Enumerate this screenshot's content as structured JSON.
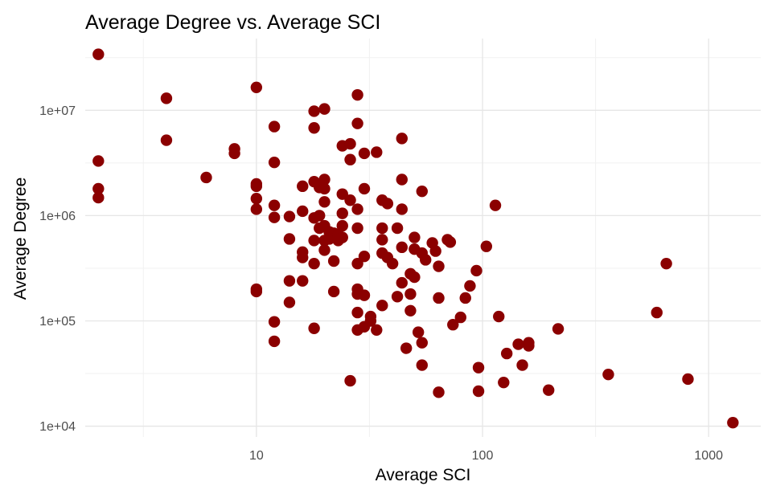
{
  "chart_data": {
    "type": "scatter",
    "title": "Average Degree vs. Average SCI",
    "xlabel": "Average SCI",
    "ylabel": "Average Degree",
    "x_scale": "log10",
    "y_scale": "log10",
    "xlim": [
      1.75,
      1700
    ],
    "ylim": [
      7900,
      48000000
    ],
    "x_ticks": [
      {
        "value": 10,
        "label": "10"
      },
      {
        "value": 100,
        "label": "100"
      },
      {
        "value": 1000,
        "label": "1000"
      }
    ],
    "y_ticks": [
      {
        "value": 10000,
        "label": "1e+04"
      },
      {
        "value": 100000,
        "label": "1e+05"
      },
      {
        "value": 1000000,
        "label": "1e+06"
      },
      {
        "value": 10000000,
        "label": "1e+07"
      }
    ],
    "grid": true,
    "legend": "none",
    "point_color": "#8b0000",
    "series": [
      {
        "points": [
          [
            2,
            34000000
          ],
          [
            2,
            3300000
          ],
          [
            2,
            1800000
          ],
          [
            2,
            1480000
          ],
          [
            4,
            13000000
          ],
          [
            4,
            5200000
          ],
          [
            6,
            2300000
          ],
          [
            8,
            4300000
          ],
          [
            8,
            3900000
          ],
          [
            10,
            16500000
          ],
          [
            10,
            2000000
          ],
          [
            10,
            1900000
          ],
          [
            10,
            1450000
          ],
          [
            10,
            1150000
          ],
          [
            10,
            200000
          ],
          [
            10,
            190000
          ],
          [
            12,
            7000000
          ],
          [
            12,
            3200000
          ],
          [
            12,
            1250000
          ],
          [
            12,
            960000
          ],
          [
            12,
            98000
          ],
          [
            12,
            64000
          ],
          [
            14,
            980000
          ],
          [
            14,
            600000
          ],
          [
            14,
            240000
          ],
          [
            14,
            150000
          ],
          [
            16,
            1900000
          ],
          [
            16,
            1100000
          ],
          [
            16,
            450000
          ],
          [
            16,
            400000
          ],
          [
            16,
            240000
          ],
          [
            18,
            9800000
          ],
          [
            18,
            6800000
          ],
          [
            18,
            2100000
          ],
          [
            18,
            950000
          ],
          [
            18,
            580000
          ],
          [
            18,
            350000
          ],
          [
            18,
            85000
          ],
          [
            19,
            1850000
          ],
          [
            19,
            1000000
          ],
          [
            19,
            760000
          ],
          [
            20,
            10300000
          ],
          [
            20,
            2200000
          ],
          [
            20,
            1800000
          ],
          [
            20,
            1350000
          ],
          [
            20,
            800000
          ],
          [
            20,
            580000
          ],
          [
            20,
            470000
          ],
          [
            21,
            700000
          ],
          [
            21,
            600000
          ],
          [
            22,
            680000
          ],
          [
            22,
            370000
          ],
          [
            22,
            190000
          ],
          [
            23,
            580000
          ],
          [
            23,
            660000
          ],
          [
            24,
            4600000
          ],
          [
            24,
            1600000
          ],
          [
            24,
            1050000
          ],
          [
            24,
            800000
          ],
          [
            24,
            620000
          ],
          [
            26,
            4800000
          ],
          [
            26,
            3400000
          ],
          [
            26,
            1400000
          ],
          [
            26,
            27000
          ],
          [
            28,
            14000000
          ],
          [
            28,
            7500000
          ],
          [
            28,
            1150000
          ],
          [
            28,
            760000
          ],
          [
            28,
            350000
          ],
          [
            28,
            200000
          ],
          [
            28,
            180000
          ],
          [
            28,
            120000
          ],
          [
            28,
            82000
          ],
          [
            30,
            3900000
          ],
          [
            30,
            1800000
          ],
          [
            30,
            410000
          ],
          [
            30,
            175000
          ],
          [
            30,
            88000
          ],
          [
            32,
            100000
          ],
          [
            32,
            110000
          ],
          [
            34,
            4000000
          ],
          [
            34,
            82000
          ],
          [
            36,
            1400000
          ],
          [
            36,
            760000
          ],
          [
            36,
            590000
          ],
          [
            36,
            440000
          ],
          [
            36,
            140000
          ],
          [
            38,
            1300000
          ],
          [
            38,
            400000
          ],
          [
            40,
            350000
          ],
          [
            42,
            760000
          ],
          [
            42,
            170000
          ],
          [
            44,
            5400000
          ],
          [
            44,
            2200000
          ],
          [
            44,
            1150000
          ],
          [
            44,
            500000
          ],
          [
            44,
            230000
          ],
          [
            46,
            55000
          ],
          [
            48,
            280000
          ],
          [
            48,
            180000
          ],
          [
            48,
            125000
          ],
          [
            50,
            620000
          ],
          [
            50,
            480000
          ],
          [
            50,
            260000
          ],
          [
            52,
            78000
          ],
          [
            54,
            1700000
          ],
          [
            54,
            440000
          ],
          [
            54,
            62000
          ],
          [
            54,
            38000
          ],
          [
            56,
            380000
          ],
          [
            60,
            550000
          ],
          [
            62,
            460000
          ],
          [
            64,
            330000
          ],
          [
            64,
            165000
          ],
          [
            64,
            21000
          ],
          [
            70,
            590000
          ],
          [
            72,
            560000
          ],
          [
            74,
            92000
          ],
          [
            80,
            108000
          ],
          [
            84,
            165000
          ],
          [
            88,
            215000
          ],
          [
            94,
            300000
          ],
          [
            96,
            36000
          ],
          [
            96,
            21500
          ],
          [
            104,
            510000
          ],
          [
            114,
            1250000
          ],
          [
            118,
            110000
          ],
          [
            124,
            26000
          ],
          [
            128,
            49000
          ],
          [
            144,
            60000
          ],
          [
            150,
            38000
          ],
          [
            160,
            58000
          ],
          [
            160,
            62000
          ],
          [
            196,
            22000
          ],
          [
            216,
            84000
          ],
          [
            360,
            31000
          ],
          [
            590,
            120000
          ],
          [
            650,
            350000
          ],
          [
            810,
            28000
          ],
          [
            1280,
            10800
          ]
        ]
      }
    ]
  }
}
